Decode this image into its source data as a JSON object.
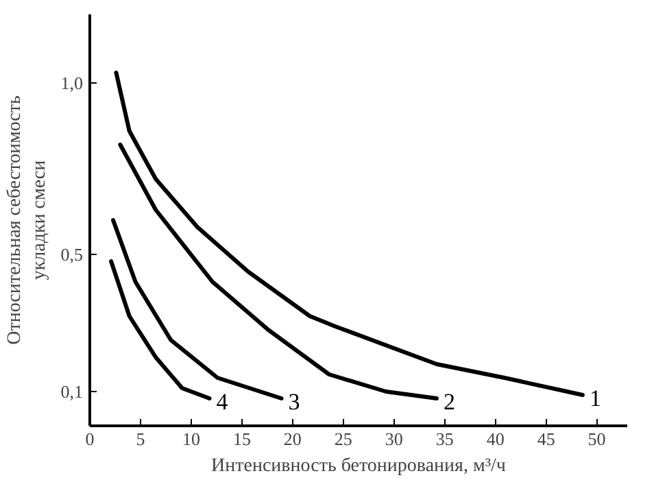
{
  "chart_data": {
    "type": "line",
    "xlabel": "Интенсивность бетонирования, м³/ч",
    "ylabel": "Относительная себестоимость\nукладки смеси",
    "xlim": [
      0,
      53
    ],
    "ylim": [
      0,
      1.2
    ],
    "xticks": [
      0,
      5,
      10,
      15,
      20,
      25,
      30,
      35,
      40,
      45,
      50
    ],
    "yticks": [
      {
        "value": 0.1,
        "label": "0,1"
      },
      {
        "value": 0.5,
        "label": "0,5"
      },
      {
        "value": 1.0,
        "label": "1,0"
      }
    ],
    "grid": false,
    "marker": "none",
    "line_style": "solid",
    "series": [
      {
        "name": "1",
        "color": "#000000",
        "x": [
          2.6,
          3.9,
          6.5,
          10.6,
          15.6,
          21.7,
          24.2,
          34.2,
          40.9,
          48.6
        ],
        "values": [
          1.03,
          0.86,
          0.72,
          0.58,
          0.45,
          0.32,
          0.29,
          0.18,
          0.14,
          0.09
        ]
      },
      {
        "name": "2",
        "color": "#000000",
        "x": [
          3.0,
          6.5,
          12.1,
          17.6,
          23.6,
          29.2,
          34.2
        ],
        "values": [
          0.82,
          0.63,
          0.42,
          0.28,
          0.15,
          0.1,
          0.08
        ]
      },
      {
        "name": "3",
        "color": "#000000",
        "x": [
          2.3,
          4.5,
          8.0,
          12.6,
          18.9
        ],
        "values": [
          0.6,
          0.42,
          0.25,
          0.14,
          0.08
        ]
      },
      {
        "name": "4",
        "color": "#000000",
        "x": [
          2.1,
          3.9,
          6.5,
          9.1,
          11.8
        ],
        "values": [
          0.48,
          0.32,
          0.2,
          0.11,
          0.08
        ]
      }
    ]
  }
}
